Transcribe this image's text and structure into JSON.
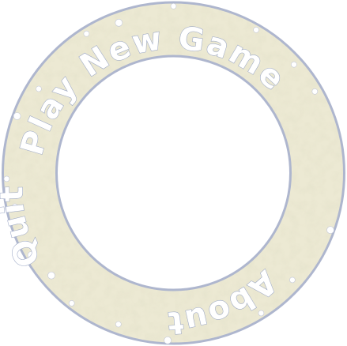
{
  "menu": {
    "items": [
      {
        "id": "play",
        "label": "Play New Game"
      },
      {
        "id": "about",
        "label": "About"
      },
      {
        "id": "quit",
        "label": "Quit"
      }
    ]
  },
  "colors": {
    "ring_fill": "#ece9d3",
    "ring_edge": "#aeb6ce",
    "crack_lines": "#d6d1b2",
    "label_fill": "#ffffff",
    "label_outline": "#9aa6c4",
    "dots": "#ffffff"
  }
}
